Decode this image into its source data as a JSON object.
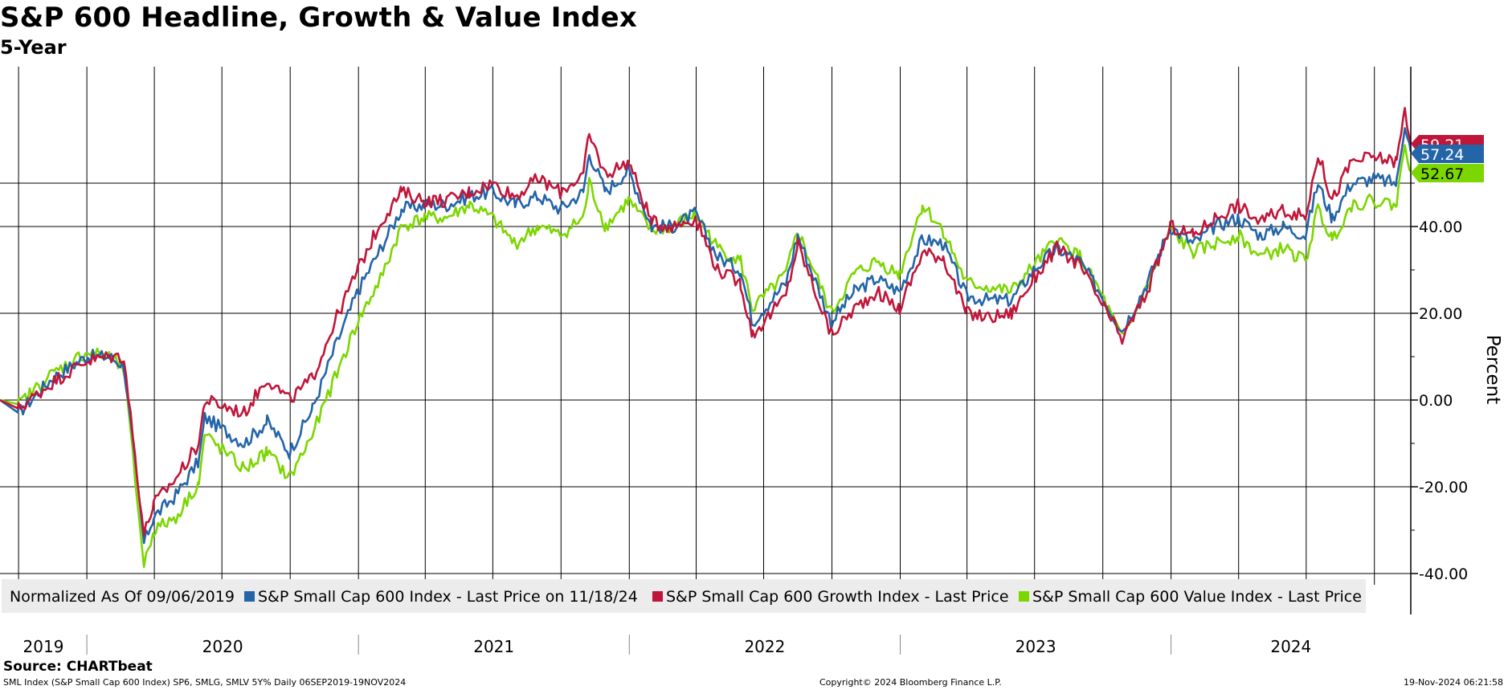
{
  "header": {
    "title": "S&P 600 Headline, Growth & Value Index",
    "subtitle": "5-Year"
  },
  "footer": {
    "source": "Source: CHARTbeat",
    "info": "SML Index (S&P Small Cap 600 Index) SP6, SMLG, SMLV 5Y%  Daily 06SEP2019-19NOV2024",
    "copyright": "Copyright© 2024 Bloomberg Finance L.P.",
    "timestamp": "19-Nov-2024 06:21:58"
  },
  "colors": {
    "headline": "#2465a8",
    "growth": "#c0163a",
    "value": "#7cd600",
    "grid": "#000000",
    "legend_bg": "#ececec"
  },
  "chart_data": {
    "type": "line",
    "title": "S&P 600 Headline, Growth & Value Index",
    "subtitle": "5-Year",
    "ylabel": "Percent",
    "ylim": [
      -40,
      50
    ],
    "yticks": [
      -40,
      -20,
      0,
      20,
      40
    ],
    "ytick_labels": [
      "-40.00",
      "-20.00",
      "0.00",
      "20.00",
      "40.00"
    ],
    "y_axis_side": "right",
    "xlim": [
      "2019-09-06",
      "2024-11-19"
    ],
    "year_labels": [
      "2019",
      "2020",
      "2021",
      "2022",
      "2023",
      "2024"
    ],
    "grid": true,
    "legend_placement": "bottom-left",
    "legend_prefix": "Normalized As Of 09/06/2019",
    "series": [
      {
        "name": "S&P Small Cap 600 Index - Last Price on 11/18/24",
        "color_key": "headline",
        "last_value_label": "57.24",
        "points": [
          [
            "2019-09-06",
            0
          ],
          [
            "2019-10-01",
            -3
          ],
          [
            "2019-11-15",
            5
          ],
          [
            "2019-12-31",
            10
          ],
          [
            "2020-01-31",
            10
          ],
          [
            "2020-02-20",
            8
          ],
          [
            "2020-03-18",
            -33
          ],
          [
            "2020-03-31",
            -27
          ],
          [
            "2020-04-30",
            -22
          ],
          [
            "2020-05-31",
            -14
          ],
          [
            "2020-06-08",
            -4
          ],
          [
            "2020-07-31",
            -10
          ],
          [
            "2020-08-31",
            -5
          ],
          [
            "2020-09-30",
            -12
          ],
          [
            "2020-10-31",
            -2
          ],
          [
            "2020-11-30",
            12
          ],
          [
            "2020-12-31",
            25
          ],
          [
            "2021-01-31",
            35
          ],
          [
            "2021-02-28",
            44
          ],
          [
            "2021-03-31",
            45
          ],
          [
            "2021-04-30",
            45
          ],
          [
            "2021-05-31",
            47
          ],
          [
            "2021-06-30",
            48
          ],
          [
            "2021-07-31",
            45
          ],
          [
            "2021-08-31",
            47
          ],
          [
            "2021-09-30",
            44
          ],
          [
            "2021-10-31",
            48
          ],
          [
            "2021-11-08",
            57
          ],
          [
            "2021-11-30",
            48
          ],
          [
            "2021-12-31",
            53
          ],
          [
            "2022-01-31",
            40
          ],
          [
            "2022-02-28",
            40
          ],
          [
            "2022-03-31",
            43
          ],
          [
            "2022-04-30",
            33
          ],
          [
            "2022-05-31",
            30
          ],
          [
            "2022-06-16",
            18
          ],
          [
            "2022-07-31",
            27
          ],
          [
            "2022-08-16",
            38
          ],
          [
            "2022-09-30",
            18
          ],
          [
            "2022-10-31",
            25
          ],
          [
            "2022-11-30",
            28
          ],
          [
            "2022-12-31",
            25
          ],
          [
            "2023-01-31",
            37
          ],
          [
            "2023-02-28",
            36
          ],
          [
            "2023-03-31",
            24
          ],
          [
            "2023-04-30",
            23
          ],
          [
            "2023-05-31",
            23
          ],
          [
            "2023-06-30",
            30
          ],
          [
            "2023-07-31",
            35
          ],
          [
            "2023-08-31",
            32
          ],
          [
            "2023-09-30",
            24
          ],
          [
            "2023-10-27",
            16
          ],
          [
            "2023-11-30",
            27
          ],
          [
            "2023-12-31",
            40
          ],
          [
            "2024-01-31",
            36
          ],
          [
            "2024-02-29",
            40
          ],
          [
            "2024-03-31",
            42
          ],
          [
            "2024-04-30",
            38
          ],
          [
            "2024-05-31",
            40
          ],
          [
            "2024-06-30",
            38
          ],
          [
            "2024-07-17",
            50
          ],
          [
            "2024-08-05",
            42
          ],
          [
            "2024-08-31",
            50
          ],
          [
            "2024-09-30",
            51
          ],
          [
            "2024-10-31",
            50
          ],
          [
            "2024-11-11",
            64
          ],
          [
            "2024-11-19",
            57.24
          ]
        ]
      },
      {
        "name": "S&P Small Cap 600 Growth Index - Last Price",
        "color_key": "growth",
        "last_value_label": "59.21",
        "points": [
          [
            "2019-09-06",
            0
          ],
          [
            "2019-10-01",
            -2
          ],
          [
            "2019-11-15",
            4
          ],
          [
            "2019-12-31",
            9
          ],
          [
            "2020-01-31",
            10
          ],
          [
            "2020-02-20",
            10
          ],
          [
            "2020-03-18",
            -31
          ],
          [
            "2020-03-31",
            -24
          ],
          [
            "2020-04-30",
            -18
          ],
          [
            "2020-05-31",
            -10
          ],
          [
            "2020-06-08",
            0
          ],
          [
            "2020-07-31",
            -3
          ],
          [
            "2020-08-31",
            5
          ],
          [
            "2020-09-30",
            0
          ],
          [
            "2020-10-31",
            5
          ],
          [
            "2020-11-30",
            18
          ],
          [
            "2020-12-31",
            30
          ],
          [
            "2021-01-31",
            41
          ],
          [
            "2021-02-28",
            48
          ],
          [
            "2021-03-31",
            46
          ],
          [
            "2021-04-30",
            46
          ],
          [
            "2021-05-31",
            48
          ],
          [
            "2021-06-30",
            50
          ],
          [
            "2021-07-31",
            47
          ],
          [
            "2021-08-31",
            51
          ],
          [
            "2021-09-30",
            48
          ],
          [
            "2021-10-31",
            52
          ],
          [
            "2021-11-08",
            61
          ],
          [
            "2021-11-30",
            52
          ],
          [
            "2021-12-31",
            55
          ],
          [
            "2022-01-31",
            41
          ],
          [
            "2022-02-28",
            40
          ],
          [
            "2022-03-31",
            42
          ],
          [
            "2022-04-30",
            30
          ],
          [
            "2022-05-31",
            27
          ],
          [
            "2022-06-16",
            15
          ],
          [
            "2022-07-31",
            24
          ],
          [
            "2022-08-16",
            36
          ],
          [
            "2022-09-30",
            15
          ],
          [
            "2022-10-31",
            21
          ],
          [
            "2022-11-30",
            25
          ],
          [
            "2022-12-31",
            21
          ],
          [
            "2023-01-31",
            34
          ],
          [
            "2023-02-28",
            33
          ],
          [
            "2023-03-31",
            20
          ],
          [
            "2023-04-30",
            19
          ],
          [
            "2023-05-31",
            20
          ],
          [
            "2023-06-30",
            28
          ],
          [
            "2023-07-31",
            35
          ],
          [
            "2023-08-31",
            31
          ],
          [
            "2023-09-30",
            22
          ],
          [
            "2023-10-27",
            14
          ],
          [
            "2023-11-30",
            25
          ],
          [
            "2023-12-31",
            40
          ],
          [
            "2024-01-31",
            38
          ],
          [
            "2024-02-29",
            42
          ],
          [
            "2024-03-31",
            45
          ],
          [
            "2024-04-30",
            41
          ],
          [
            "2024-05-31",
            44
          ],
          [
            "2024-06-30",
            42
          ],
          [
            "2024-07-17",
            57
          ],
          [
            "2024-08-05",
            46
          ],
          [
            "2024-08-31",
            55
          ],
          [
            "2024-09-30",
            56
          ],
          [
            "2024-10-31",
            55
          ],
          [
            "2024-11-11",
            67
          ],
          [
            "2024-11-19",
            59.21
          ]
        ]
      },
      {
        "name": "S&P Small Cap 600 Value Index - Last Price",
        "color_key": "value",
        "last_value_label": "52.67",
        "points": [
          [
            "2019-09-06",
            0
          ],
          [
            "2019-10-01",
            -1
          ],
          [
            "2019-11-15",
            6
          ],
          [
            "2019-12-31",
            11
          ],
          [
            "2020-01-31",
            10
          ],
          [
            "2020-02-20",
            7
          ],
          [
            "2020-03-18",
            -38
          ],
          [
            "2020-03-31",
            -30
          ],
          [
            "2020-04-30",
            -27
          ],
          [
            "2020-05-31",
            -19
          ],
          [
            "2020-06-08",
            -8
          ],
          [
            "2020-07-31",
            -16
          ],
          [
            "2020-08-31",
            -12
          ],
          [
            "2020-09-30",
            -18
          ],
          [
            "2020-10-31",
            -8
          ],
          [
            "2020-11-30",
            5
          ],
          [
            "2020-12-31",
            18
          ],
          [
            "2021-01-31",
            28
          ],
          [
            "2021-02-28",
            40
          ],
          [
            "2021-03-31",
            42
          ],
          [
            "2021-04-30",
            42
          ],
          [
            "2021-05-31",
            45
          ],
          [
            "2021-06-30",
            42
          ],
          [
            "2021-07-31",
            36
          ],
          [
            "2021-08-31",
            40
          ],
          [
            "2021-09-30",
            38
          ],
          [
            "2021-10-31",
            42
          ],
          [
            "2021-11-08",
            50
          ],
          [
            "2021-11-30",
            40
          ],
          [
            "2021-12-31",
            46
          ],
          [
            "2022-01-31",
            39
          ],
          [
            "2022-02-28",
            40
          ],
          [
            "2022-03-31",
            43
          ],
          [
            "2022-04-30",
            35
          ],
          [
            "2022-05-31",
            32
          ],
          [
            "2022-06-16",
            21
          ],
          [
            "2022-07-31",
            29
          ],
          [
            "2022-08-16",
            39
          ],
          [
            "2022-09-30",
            20
          ],
          [
            "2022-10-31",
            29
          ],
          [
            "2022-11-30",
            32
          ],
          [
            "2022-12-31",
            29
          ],
          [
            "2023-01-31",
            45
          ],
          [
            "2023-02-28",
            39
          ],
          [
            "2023-03-31",
            27
          ],
          [
            "2023-04-30",
            26
          ],
          [
            "2023-05-31",
            25
          ],
          [
            "2023-06-30",
            31
          ],
          [
            "2023-07-31",
            37
          ],
          [
            "2023-08-31",
            33
          ],
          [
            "2023-09-30",
            24
          ],
          [
            "2023-10-27",
            14
          ],
          [
            "2023-11-30",
            26
          ],
          [
            "2023-12-31",
            39
          ],
          [
            "2024-01-31",
            34
          ],
          [
            "2024-02-29",
            36
          ],
          [
            "2024-03-31",
            38
          ],
          [
            "2024-04-30",
            33
          ],
          [
            "2024-05-31",
            35
          ],
          [
            "2024-06-30",
            32
          ],
          [
            "2024-07-17",
            44
          ],
          [
            "2024-08-05",
            37
          ],
          [
            "2024-08-31",
            45
          ],
          [
            "2024-09-30",
            46
          ],
          [
            "2024-10-31",
            45
          ],
          [
            "2024-11-11",
            60
          ],
          [
            "2024-11-19",
            52.67
          ]
        ]
      }
    ]
  }
}
